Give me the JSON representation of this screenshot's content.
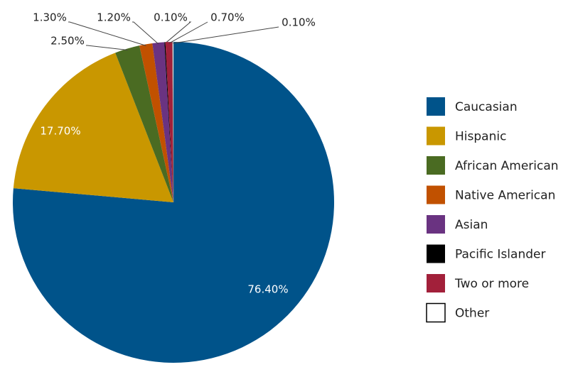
{
  "chart_data": {
    "type": "pie",
    "categories": [
      "Caucasian",
      "Hispanic",
      "African American",
      "Native American",
      "Asian",
      "Pacific Islander",
      "Two or more",
      "Other"
    ],
    "values": [
      76.4,
      17.7,
      2.5,
      1.3,
      1.2,
      0.1,
      0.7,
      0.1
    ],
    "value_labels": [
      "76.40%",
      "17.70%",
      "2.50%",
      "1.30%",
      "1.20%",
      "0.10%",
      "0.70%",
      "0.10%"
    ],
    "colors": [
      "#00538a",
      "#c99700",
      "#4a6b22",
      "#c15100",
      "#6a3381",
      "#000000",
      "#a2203a",
      "#ffffff"
    ],
    "legend": "right"
  }
}
